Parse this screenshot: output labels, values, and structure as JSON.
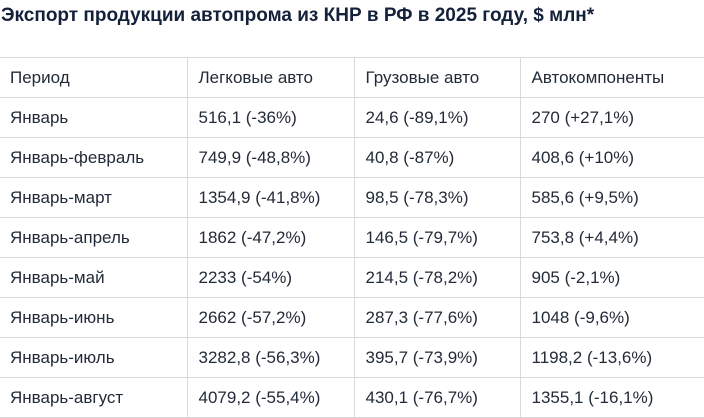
{
  "title": "Экспорт продукции автопрома из КНР в РФ в 2025 году, $ млн*",
  "colors": {
    "title_text": "#14213a",
    "table_text": "#222b38",
    "border": "#d9d9d9",
    "background": "#ffffff"
  },
  "chart_data": {
    "type": "table",
    "title": "Экспорт продукции автопрома из КНР в РФ в 2025 году, $ млн*",
    "columns": [
      "Период",
      "Легковые авто",
      "Грузовые авто",
      "Автокомпоненты"
    ],
    "column_keys": [
      "period",
      "passenger-cars",
      "trucks",
      "auto-components"
    ],
    "rows": [
      [
        "Январь",
        "516,1 (-36%)",
        "24,6 (-89,1%)",
        "270 (+27,1%)"
      ],
      [
        "Январь-февраль",
        "749,9 (-48,8%)",
        "40,8 (-87%)",
        "408,6 (+10%)"
      ],
      [
        "Январь-март",
        "1354,9 (-41,8%)",
        "98,5 (-78,3%)",
        "585,6 (+9,5%)"
      ],
      [
        "Январь-апрель",
        "1862 (-47,2%)",
        "146,5 (-79,7%)",
        "753,8 (+4,4%)"
      ],
      [
        "Январь-май",
        "2233 (-54%)",
        "214,5 (-78,2%)",
        "905 (-2,1%)"
      ],
      [
        "Январь-июнь",
        "2662 (-57,2%)",
        "287,3 (-77,6%)",
        "1048 (-9,6%)"
      ],
      [
        "Январь-июль",
        "3282,8 (-56,3%)",
        "395,7 (-73,9%)",
        "1198,2 (-13,6%)"
      ],
      [
        "Январь-август",
        "4079,2 (-55,4%)",
        "430,1 (-76,7%)",
        "1355,1 (-16,1%)"
      ]
    ],
    "values": {
      "passenger_cars_mln_usd": [
        516.1,
        749.9,
        1354.9,
        1862,
        2233,
        2662,
        3282.8,
        4079.2
      ],
      "passenger_cars_yoy_pct": [
        -36,
        -48.8,
        -41.8,
        -47.2,
        -54,
        -57.2,
        -56.3,
        -55.4
      ],
      "trucks_mln_usd": [
        24.6,
        40.8,
        98.5,
        146.5,
        214.5,
        287.3,
        395.7,
        430.1
      ],
      "trucks_yoy_pct": [
        -89.1,
        -87,
        -78.3,
        -79.7,
        -78.2,
        -77.6,
        -73.9,
        -76.7
      ],
      "auto_components_mln_usd": [
        270,
        408.6,
        585.6,
        753.8,
        905,
        1048,
        1198.2,
        1355.1
      ],
      "auto_components_yoy_pct": [
        27.1,
        10,
        9.5,
        4.4,
        -2.1,
        -9.6,
        -13.6,
        -16.1
      ]
    }
  }
}
